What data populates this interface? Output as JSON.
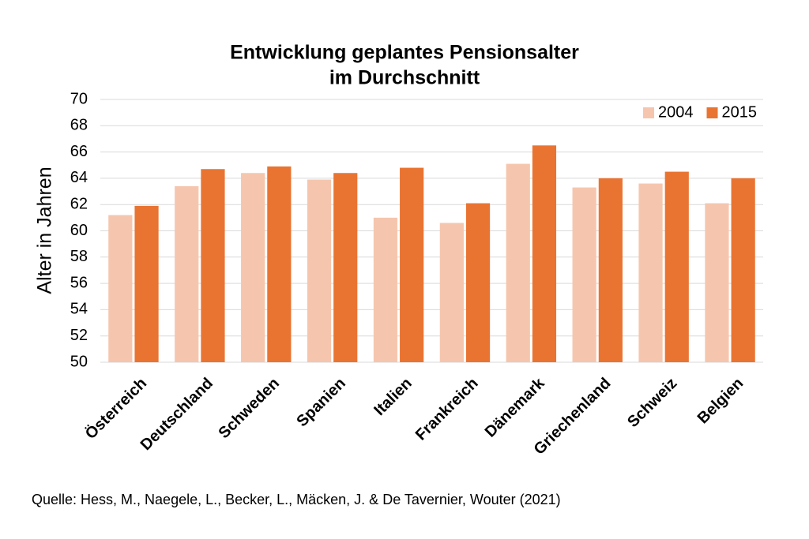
{
  "chart_data": {
    "type": "bar",
    "title": [
      "Entwicklung geplantes Pensionsalter",
      "im Durchschnitt"
    ],
    "y_label": "Alter in Jahren",
    "source": "Quelle: Hess, M., Naegele, L., Becker, L., Mäcken, J. & De Tavernier, Wouter (2021)",
    "categories": [
      "Österreich",
      "Deutschland",
      "Schweden",
      "Spanien",
      "Italien",
      "Frankreich",
      "Dänemark",
      "Griechenland",
      "Schweiz",
      "Belgien"
    ],
    "series": [
      {
        "name": "2004",
        "color": "#f5c6ad",
        "values": [
          61.2,
          63.4,
          64.4,
          63.9,
          61.0,
          60.6,
          65.1,
          63.3,
          63.6,
          62.1
        ]
      },
      {
        "name": "2015",
        "color": "#e97432",
        "values": [
          61.9,
          64.7,
          64.9,
          64.4,
          64.8,
          62.1,
          66.5,
          64.0,
          64.5,
          64.0
        ]
      }
    ],
    "ylim": [
      50,
      70
    ],
    "yticks": [
      50,
      52,
      54,
      56,
      58,
      60,
      62,
      64,
      66,
      68,
      70
    ],
    "grid": true,
    "legend": "upper right"
  }
}
